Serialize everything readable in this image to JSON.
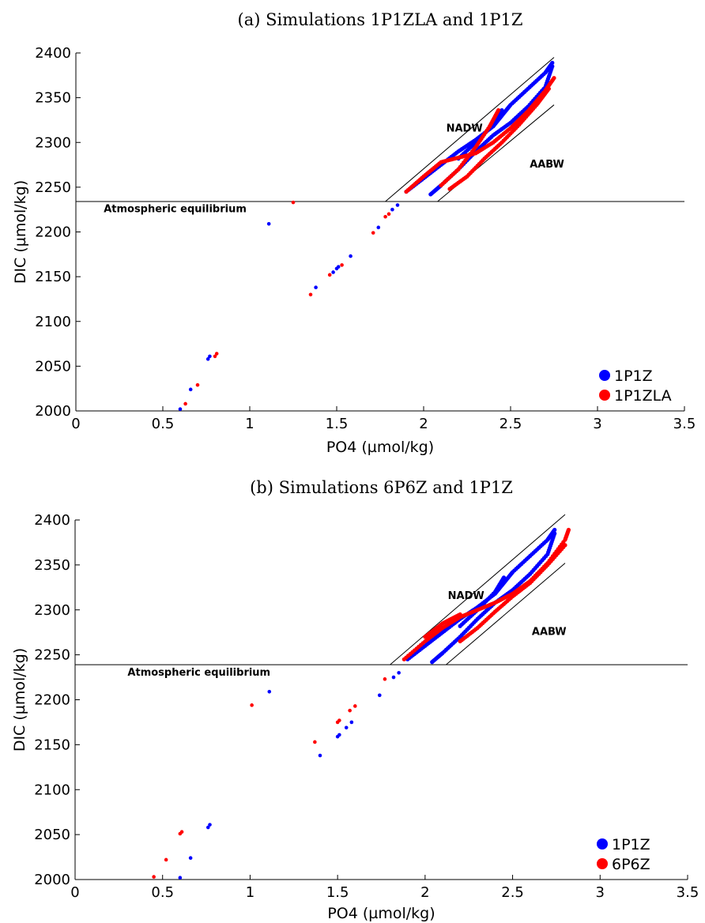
{
  "chart_data": [
    {
      "type": "scatter",
      "title": "(a) Simulations 1P1ZLA and 1P1Z",
      "xlabel": "PO4 (µmol/kg)",
      "ylabel": "DIC (µmol/kg)",
      "xlim": [
        0,
        3.5
      ],
      "ylim": [
        2000,
        2400
      ],
      "xticks": [
        0,
        0.5,
        1,
        1.5,
        2,
        2.5,
        3,
        3.5
      ],
      "yticks": [
        2000,
        2050,
        2100,
        2150,
        2200,
        2250,
        2300,
        2350,
        2400
      ],
      "grid": false,
      "legend_position": "bottom-right",
      "annotations": [
        {
          "text": "NADW",
          "x": 2.13,
          "y": 2312
        },
        {
          "text": "AABW",
          "x": 2.61,
          "y": 2272
        },
        {
          "text": "Atmospheric equilibrium",
          "x": 0.16,
          "y": 2222
        }
      ],
      "equilibrium_line": {
        "y": 2234
      },
      "bounding_lines": [
        {
          "from": [
            1.78,
            2234
          ],
          "to": [
            2.75,
            2395
          ]
        },
        {
          "from": [
            2.08,
            2234
          ],
          "to": [
            2.75,
            2342
          ]
        }
      ],
      "series": [
        {
          "name": "1P1Z",
          "color": "#0000ff",
          "points": [
            [
              0.6,
              2002
            ],
            [
              0.66,
              2024
            ],
            [
              0.76,
              2058
            ],
            [
              0.77,
              2061
            ],
            [
              1.11,
              2209
            ],
            [
              1.38,
              2138
            ],
            [
              1.48,
              2155
            ],
            [
              1.5,
              2159
            ],
            [
              1.51,
              2161
            ],
            [
              1.58,
              2173
            ],
            [
              1.74,
              2205
            ],
            [
              1.82,
              2225
            ],
            [
              1.85,
              2230
            ],
            [
              2.04,
              2242
            ]
          ],
          "curves": [
            [
              [
                1.9,
                2245
              ],
              [
                2.0,
                2260
              ],
              [
                2.1,
                2275
              ],
              [
                2.2,
                2290
              ],
              [
                2.3,
                2303
              ],
              [
                2.4,
                2318
              ],
              [
                2.45,
                2330
              ],
              [
                2.5,
                2342
              ],
              [
                2.6,
                2360
              ],
              [
                2.7,
                2378
              ],
              [
                2.74,
                2389
              ]
            ],
            [
              [
                2.04,
                2242
              ],
              [
                2.1,
                2252
              ],
              [
                2.2,
                2270
              ],
              [
                2.3,
                2290
              ],
              [
                2.4,
                2308
              ],
              [
                2.5,
                2322
              ],
              [
                2.6,
                2340
              ],
              [
                2.7,
                2362
              ],
              [
                2.74,
                2385
              ]
            ],
            [
              [
                2.2,
                2282
              ],
              [
                2.3,
                2300
              ],
              [
                2.4,
                2320
              ],
              [
                2.45,
                2336
              ]
            ]
          ]
        },
        {
          "name": "1P1ZLA",
          "color": "#ff0000",
          "points": [
            [
              0.63,
              2008
            ],
            [
              0.7,
              2029
            ],
            [
              0.8,
              2061
            ],
            [
              0.81,
              2064
            ],
            [
              1.25,
              2233
            ],
            [
              1.35,
              2130
            ],
            [
              1.46,
              2152
            ],
            [
              1.53,
              2163
            ],
            [
              1.71,
              2199
            ],
            [
              1.78,
              2217
            ],
            [
              1.8,
              2220
            ]
          ],
          "curves": [
            [
              [
                1.9,
                2245
              ],
              [
                2.0,
                2262
              ],
              [
                2.1,
                2278
              ],
              [
                2.2,
                2283
              ],
              [
                2.3,
                2288
              ],
              [
                2.4,
                2300
              ],
              [
                2.5,
                2316
              ],
              [
                2.6,
                2335
              ],
              [
                2.7,
                2358
              ],
              [
                2.75,
                2372
              ]
            ],
            [
              [
                2.1,
                2252
              ],
              [
                2.2,
                2270
              ],
              [
                2.3,
                2295
              ],
              [
                2.38,
                2318
              ],
              [
                2.43,
                2336
              ]
            ],
            [
              [
                2.15,
                2248
              ],
              [
                2.25,
                2262
              ],
              [
                2.35,
                2282
              ],
              [
                2.45,
                2300
              ],
              [
                2.55,
                2320
              ],
              [
                2.65,
                2342
              ],
              [
                2.72,
                2360
              ]
            ]
          ]
        }
      ]
    },
    {
      "type": "scatter",
      "title": "(b) Simulations 6P6Z and 1P1Z",
      "xlabel": "PO4 (µmol/kg)",
      "ylabel": "DIC (µmol/kg)",
      "xlim": [
        0,
        3.5
      ],
      "ylim": [
        2000,
        2400
      ],
      "xticks": [
        0,
        0.5,
        1,
        1.5,
        2,
        2.5,
        3,
        3.5
      ],
      "yticks": [
        2000,
        2050,
        2100,
        2150,
        2200,
        2250,
        2300,
        2350,
        2400
      ],
      "grid": false,
      "legend_position": "bottom-right",
      "annotations": [
        {
          "text": "NADW",
          "x": 2.13,
          "y": 2312
        },
        {
          "text": "AABW",
          "x": 2.61,
          "y": 2272
        },
        {
          "text": "Atmospheric equilibrium",
          "x": 0.3,
          "y": 2227
        }
      ],
      "equilibrium_line": {
        "y": 2239
      },
      "bounding_lines": [
        {
          "from": [
            1.8,
            2239
          ],
          "to": [
            2.8,
            2406
          ]
        },
        {
          "from": [
            2.12,
            2239
          ],
          "to": [
            2.8,
            2352
          ]
        }
      ],
      "series": [
        {
          "name": "1P1Z",
          "color": "#0000ff",
          "points": [
            [
              0.6,
              2002
            ],
            [
              0.66,
              2024
            ],
            [
              0.76,
              2058
            ],
            [
              0.77,
              2061
            ],
            [
              1.11,
              2209
            ],
            [
              1.4,
              2138
            ],
            [
              1.5,
              2159
            ],
            [
              1.51,
              2161
            ],
            [
              1.55,
              2169
            ],
            [
              1.58,
              2175
            ],
            [
              1.74,
              2205
            ],
            [
              1.82,
              2225
            ],
            [
              1.85,
              2230
            ],
            [
              2.04,
              2242
            ]
          ],
          "curves": [
            [
              [
                1.9,
                2245
              ],
              [
                2.0,
                2260
              ],
              [
                2.1,
                2275
              ],
              [
                2.2,
                2290
              ],
              [
                2.3,
                2303
              ],
              [
                2.4,
                2318
              ],
              [
                2.45,
                2330
              ],
              [
                2.5,
                2342
              ],
              [
                2.6,
                2360
              ],
              [
                2.7,
                2378
              ],
              [
                2.74,
                2389
              ]
            ],
            [
              [
                2.04,
                2242
              ],
              [
                2.1,
                2252
              ],
              [
                2.2,
                2270
              ],
              [
                2.3,
                2290
              ],
              [
                2.4,
                2308
              ],
              [
                2.5,
                2322
              ],
              [
                2.6,
                2340
              ],
              [
                2.7,
                2362
              ],
              [
                2.74,
                2385
              ]
            ],
            [
              [
                2.2,
                2282
              ],
              [
                2.3,
                2300
              ],
              [
                2.4,
                2320
              ],
              [
                2.45,
                2336
              ]
            ]
          ]
        },
        {
          "name": "6P6Z",
          "color": "#ff0000",
          "points": [
            [
              0.45,
              2003
            ],
            [
              0.52,
              2022
            ],
            [
              0.6,
              2051
            ],
            [
              0.61,
              2053
            ],
            [
              1.01,
              2194
            ],
            [
              1.37,
              2153
            ],
            [
              1.5,
              2175
            ],
            [
              1.51,
              2177
            ],
            [
              1.57,
              2188
            ],
            [
              1.6,
              2193
            ],
            [
              1.77,
              2223
            ]
          ],
          "curves": [
            [
              [
                1.88,
                2245
              ],
              [
                2.0,
                2265
              ],
              [
                2.1,
                2280
              ],
              [
                2.2,
                2292
              ],
              [
                2.3,
                2300
              ],
              [
                2.4,
                2308
              ],
              [
                2.5,
                2318
              ],
              [
                2.6,
                2332
              ],
              [
                2.7,
                2352
              ],
              [
                2.8,
                2378
              ],
              [
                2.82,
                2389
              ]
            ],
            [
              [
                2.2,
                2265
              ],
              [
                2.3,
                2280
              ],
              [
                2.4,
                2298
              ],
              [
                2.5,
                2315
              ],
              [
                2.6,
                2330
              ],
              [
                2.7,
                2350
              ],
              [
                2.8,
                2372
              ]
            ],
            [
              [
                2.0,
                2270
              ],
              [
                2.1,
                2285
              ],
              [
                2.2,
                2295
              ]
            ]
          ]
        }
      ]
    }
  ]
}
